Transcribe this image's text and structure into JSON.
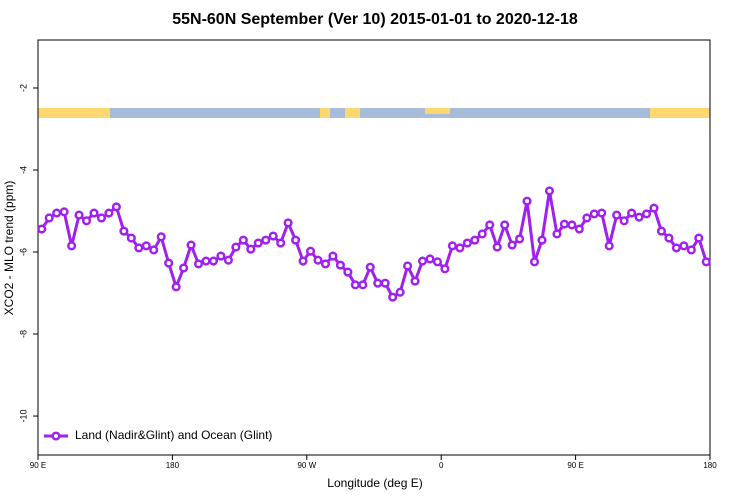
{
  "chart_data": {
    "type": "line",
    "title": "55N-60N September (Ver 10)   2015-01-01 to 2020-12-18",
    "x_label": "Longitude (deg E)",
    "y_label": "XCO2 - MLO trend (ppm)",
    "x": [
      92.5,
      97.5,
      102.5,
      107.5,
      112.5,
      117.5,
      122.5,
      127.5,
      132.5,
      137.5,
      142.5,
      147.5,
      152.5,
      157.5,
      162.5,
      167.5,
      172.5,
      177.5,
      182.5,
      187.5,
      192.5,
      197.5,
      202.5,
      207.5,
      212.5,
      217.5,
      222.5,
      227.5,
      232.5,
      237.5,
      242.5,
      247.5,
      252.5,
      257.5,
      262.5,
      267.5,
      272.5,
      277.5,
      282.5,
      287.5,
      292.5,
      297.5,
      302.5,
      307.5,
      312.5,
      317.5,
      322.5,
      327.5,
      332.5,
      337.5,
      342.5,
      347.5,
      352.5,
      357.5,
      362.5,
      367.5,
      372.5,
      377.5,
      382.5,
      387.5,
      392.5,
      397.5,
      402.5,
      407.5,
      412.5,
      417.5,
      422.5,
      427.5,
      432.5,
      437.5,
      442.5,
      447.5,
      452.5,
      457.5,
      462.5,
      467.5,
      472.5,
      477.5,
      482.5,
      487.5,
      492.5,
      497.5,
      502.5,
      507.5,
      512.5,
      517.5,
      522.5,
      527.5,
      532.5,
      537.5
    ],
    "series": [
      {
        "name": "Land (Nadir&Glint) and Ocean (Glint)",
        "color": "#a020f0",
        "values": [
          -5.44,
          -5.17,
          -5.05,
          -5.02,
          -5.85,
          -5.1,
          -5.24,
          -5.05,
          -5.17,
          -5.05,
          -4.9,
          -5.49,
          -5.66,
          -5.9,
          -5.85,
          -5.95,
          -5.63,
          -6.27,
          -6.85,
          -6.39,
          -5.83,
          -6.29,
          -6.22,
          -6.22,
          -6.1,
          -6.2,
          -5.88,
          -5.71,
          -5.93,
          -5.78,
          -5.71,
          -5.61,
          -5.78,
          -5.29,
          -5.71,
          -6.22,
          -5.98,
          -6.2,
          -6.29,
          -6.1,
          -6.32,
          -6.49,
          -6.8,
          -6.8,
          -6.37,
          -6.76,
          -6.76,
          -7.1,
          -6.98,
          -6.34,
          -6.71,
          -6.22,
          -6.17,
          -6.24,
          -6.41,
          -5.85,
          -5.9,
          -5.78,
          -5.71,
          -5.56,
          -5.34,
          -5.88,
          -5.34,
          -5.83,
          -5.68,
          -4.76,
          -6.24,
          -5.71,
          -4.51,
          -5.56,
          -5.32,
          -5.34,
          -5.44,
          -5.17,
          -5.07,
          -5.05,
          -5.85,
          -5.1,
          -5.24,
          -5.05,
          -5.15,
          -5.07,
          -4.93,
          -5.49,
          -5.66,
          -5.9,
          -5.85,
          -5.95,
          -5.66,
          -6.24
        ]
      }
    ],
    "xlim": [
      90,
      540
    ],
    "xticks": [
      {
        "value": 90,
        "label": "90 E"
      },
      180,
      {
        "value": 270,
        "label": "90 W"
      },
      {
        "value": 360,
        "label": "0"
      },
      {
        "value": 450,
        "label": "90 E"
      },
      {
        "value": 540,
        "label": "180"
      }
    ],
    "ylim": [
      -10.95,
      -0.83
    ],
    "yticks": [
      -2,
      -4,
      -6,
      -8,
      -10
    ],
    "legend": "lower left"
  }
}
